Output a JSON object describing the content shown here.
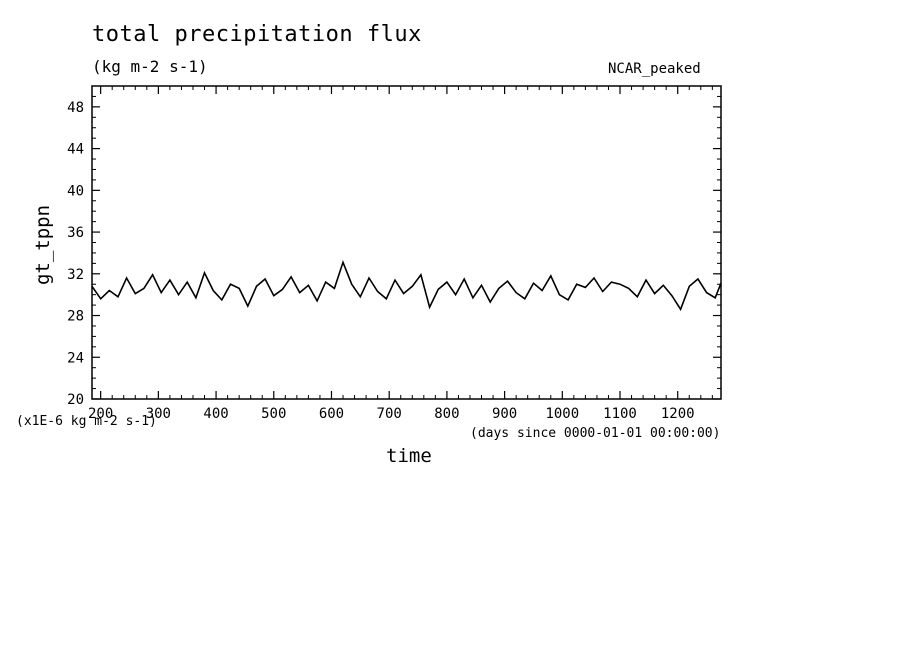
{
  "chart_data": {
    "type": "line",
    "title": "total precipitation flux",
    "units_label": "(kg m-2 s-1)",
    "run_label": "NCAR_peaked",
    "xlabel": "time",
    "x_units": "(days since 0000-01-01 00:00:00)",
    "ylabel": "gt_tppn",
    "y_scale_label": "(x1E-6 kg m-2 s-1)",
    "xlim": [
      185,
      1275
    ],
    "ylim": [
      20,
      50
    ],
    "x_ticks": [
      200,
      300,
      400,
      500,
      600,
      700,
      800,
      900,
      1000,
      1100,
      1200
    ],
    "y_ticks": [
      20,
      24,
      28,
      32,
      36,
      40,
      44,
      48
    ],
    "grid": false,
    "series": [
      {
        "x": [
          185,
          200,
          215,
          230,
          245,
          260,
          275,
          290,
          305,
          320,
          335,
          350,
          365,
          380,
          395,
          410,
          425,
          440,
          455,
          470,
          485,
          500,
          515,
          530,
          545,
          560,
          575,
          590,
          605,
          620,
          635,
          650,
          665,
          680,
          695,
          710,
          725,
          740,
          755,
          770,
          785,
          800,
          815,
          830,
          845,
          860,
          875,
          890,
          905,
          920,
          935,
          950,
          965,
          980,
          995,
          1010,
          1025,
          1040,
          1055,
          1070,
          1085,
          1100,
          1115,
          1130,
          1145,
          1160,
          1175,
          1190,
          1205,
          1220,
          1235,
          1250,
          1265,
          1275
        ],
        "values": [
          30.8,
          29.6,
          30.4,
          29.8,
          31.6,
          30.1,
          30.6,
          31.9,
          30.2,
          31.4,
          30.0,
          31.2,
          29.7,
          32.1,
          30.4,
          29.5,
          31.0,
          30.6,
          28.9,
          30.8,
          31.5,
          29.9,
          30.5,
          31.7,
          30.2,
          30.9,
          29.4,
          31.2,
          30.6,
          33.1,
          31.0,
          29.8,
          31.6,
          30.3,
          29.6,
          31.4,
          30.1,
          30.8,
          31.9,
          28.8,
          30.5,
          31.2,
          30.0,
          31.5,
          29.7,
          30.9,
          29.3,
          30.6,
          31.3,
          30.2,
          29.6,
          31.1,
          30.4,
          31.8,
          30.0,
          29.5,
          31.0,
          30.7,
          31.6,
          30.3,
          31.2,
          31.0,
          30.6,
          29.8,
          31.4,
          30.1,
          30.9,
          29.9,
          28.6,
          30.8,
          31.5,
          30.2,
          29.7,
          31.1
        ]
      }
    ]
  }
}
